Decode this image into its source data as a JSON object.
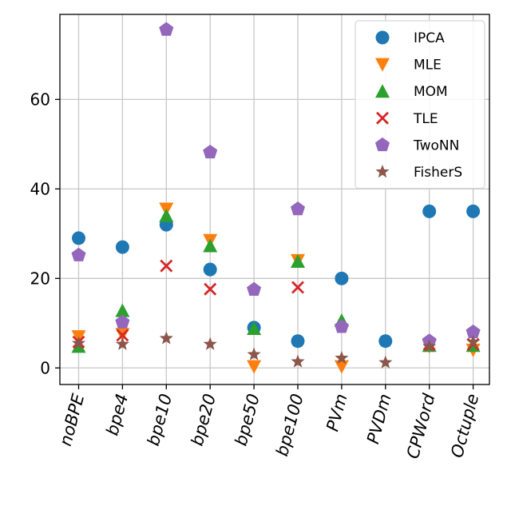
{
  "chart_data": {
    "type": "scatter",
    "title": "",
    "xlabel": "",
    "ylabel": "",
    "categories": [
      "noBPE",
      "bpe4",
      "bpe10",
      "bpe20",
      "bpe50",
      "bpe100",
      "PVm",
      "PVDm",
      "CPWord",
      "Octuple"
    ],
    "ylim": [
      -3.7,
      79
    ],
    "yticks": [
      0,
      20,
      40,
      60
    ],
    "grid": true,
    "legend_position": "top-right",
    "series": [
      {
        "name": "IPCA",
        "color": "#1f77b4",
        "marker": "circle",
        "values": [
          29,
          27,
          32,
          22,
          9,
          6,
          20,
          6,
          35,
          35
        ]
      },
      {
        "name": "MLE",
        "color": "#ff7f0e",
        "marker": "triangle-down",
        "values": [
          7,
          7.5,
          35.5,
          28.5,
          0.3,
          24,
          0.3,
          null,
          4.8,
          4
        ]
      },
      {
        "name": "MOM",
        "color": "#2ca02c",
        "marker": "triangle-up",
        "values": [
          4.8,
          12.8,
          34,
          27.3,
          8.8,
          23.8,
          10.6,
          null,
          5,
          5
        ]
      },
      {
        "name": "TLE",
        "color": "#d62728",
        "marker": "x",
        "values": [
          5.8,
          7.3,
          22.8,
          17.6,
          null,
          18,
          null,
          null,
          5.3,
          5.3
        ]
      },
      {
        "name": "TwoNN",
        "color": "#9467bd",
        "marker": "pentagon",
        "values": [
          25.2,
          10.2,
          75.6,
          48.2,
          17.5,
          35.5,
          9.2,
          null,
          6,
          8
        ]
      },
      {
        "name": "FisherS",
        "color": "#8c564b",
        "marker": "star",
        "values": [
          5.5,
          5.3,
          6.6,
          5.3,
          3,
          1.4,
          2.2,
          1.2,
          4.8,
          5.8
        ]
      }
    ]
  }
}
